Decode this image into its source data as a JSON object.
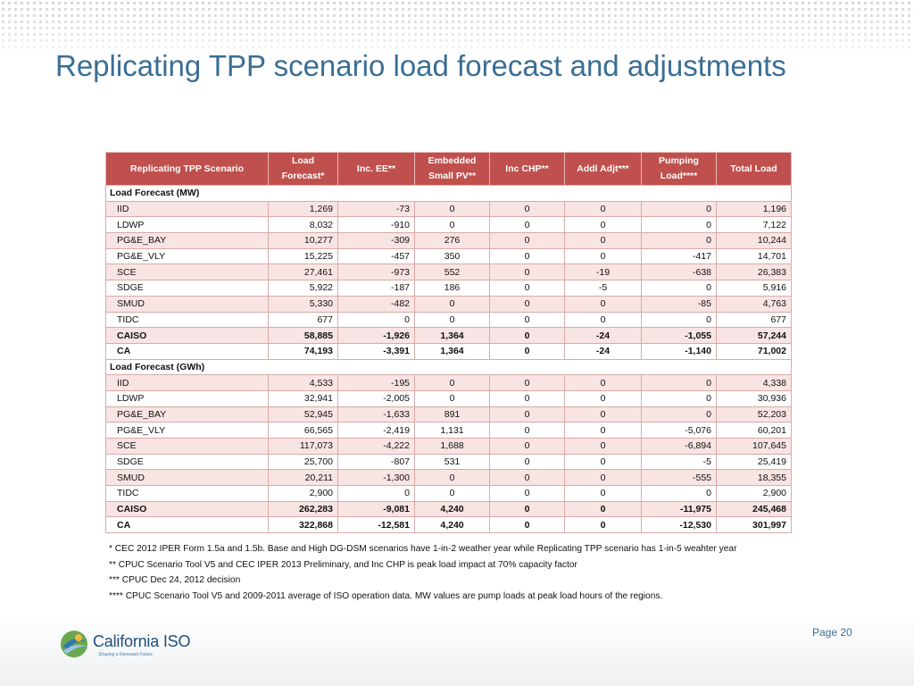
{
  "slide": {
    "title": "Replicating TPP scenario load forecast and adjustments",
    "page_label": "Page 20"
  },
  "logo": {
    "name": "California ISO",
    "tagline": "Shaping a Renewed Future"
  },
  "table": {
    "headers": [
      "Replicating TPP Scenario",
      "Load Forecast*",
      "Inc. EE**",
      "Embedded Small PV**",
      "Inc CHP**",
      "Addl Adjt***",
      "Pumping Load****",
      "Total Load"
    ],
    "sections": [
      {
        "label": "Load Forecast (MW)",
        "rows": [
          {
            "name": "IID",
            "values": [
              "1,269",
              "-73",
              "0",
              "0",
              "0",
              "0",
              "1,196"
            ]
          },
          {
            "name": "LDWP",
            "values": [
              "8,032",
              "-910",
              "0",
              "0",
              "0",
              "0",
              "7,122"
            ]
          },
          {
            "name": "PG&E_BAY",
            "values": [
              "10,277",
              "-309",
              "276",
              "0",
              "0",
              "0",
              "10,244"
            ]
          },
          {
            "name": "PG&E_VLY",
            "values": [
              "15,225",
              "-457",
              "350",
              "0",
              "0",
              "-417",
              "14,701"
            ]
          },
          {
            "name": "SCE",
            "values": [
              "27,461",
              "-973",
              "552",
              "0",
              "-19",
              "-638",
              "26,383"
            ]
          },
          {
            "name": "SDGE",
            "values": [
              "5,922",
              "-187",
              "186",
              "0",
              "-5",
              "0",
              "5,916"
            ]
          },
          {
            "name": "SMUD",
            "values": [
              "5,330",
              "-482",
              "0",
              "0",
              "0",
              "-85",
              "4,763"
            ]
          },
          {
            "name": "TIDC",
            "values": [
              "677",
              "0",
              "0",
              "0",
              "0",
              "0",
              "677"
            ]
          },
          {
            "name": "CAISO",
            "values": [
              "58,885",
              "-1,926",
              "1,364",
              "0",
              "-24",
              "-1,055",
              "57,244"
            ],
            "total": true
          },
          {
            "name": "CA",
            "values": [
              "74,193",
              "-3,391",
              "1,364",
              "0",
              "-24",
              "-1,140",
              "71,002"
            ],
            "total": true
          }
        ]
      },
      {
        "label": "Load Forecast (GWh)",
        "rows": [
          {
            "name": "IID",
            "values": [
              "4,533",
              "-195",
              "0",
              "0",
              "0",
              "0",
              "4,338"
            ]
          },
          {
            "name": "LDWP",
            "values": [
              "32,941",
              "-2,005",
              "0",
              "0",
              "0",
              "0",
              "30,936"
            ]
          },
          {
            "name": "PG&E_BAY",
            "values": [
              "52,945",
              "-1,633",
              "891",
              "0",
              "0",
              "0",
              "52,203"
            ]
          },
          {
            "name": "PG&E_VLY",
            "values": [
              "66,565",
              "-2,419",
              "1,131",
              "0",
              "0",
              "-5,076",
              "60,201"
            ]
          },
          {
            "name": "SCE",
            "values": [
              "117,073",
              "-4,222",
              "1,688",
              "0",
              "0",
              "-6,894",
              "107,645"
            ]
          },
          {
            "name": "SDGE",
            "values": [
              "25,700",
              "-807",
              "531",
              "0",
              "0",
              "-5",
              "25,419"
            ]
          },
          {
            "name": "SMUD",
            "values": [
              "20,211",
              "-1,300",
              "0",
              "0",
              "0",
              "-555",
              "18,355"
            ]
          },
          {
            "name": "TIDC",
            "values": [
              "2,900",
              "0",
              "0",
              "0",
              "0",
              "0",
              "2,900"
            ]
          },
          {
            "name": "CAISO",
            "values": [
              "262,283",
              "-9,081",
              "4,240",
              "0",
              "0",
              "-11,975",
              "245,468"
            ],
            "total": true
          },
          {
            "name": "CA",
            "values": [
              "322,868",
              "-12,581",
              "4,240",
              "0",
              "0",
              "-12,530",
              "301,997"
            ],
            "total": true
          }
        ]
      }
    ]
  },
  "footnotes": [
    "* CEC 2012 IPER Form 1.5a and 1.5b. Base and High DG-DSM scenarios have 1-in-2 weather year while Replicating TPP scenario has 1-in-5 weahter year",
    "** CPUC Scenario Tool V5 and CEC IPER 2013 Preliminary, and Inc CHP is peak load impact at 70% capacity factor",
    "*** CPUC Dec 24, 2012 decision",
    "**** CPUC Scenario Tool V5 and 2009-2011 average of ISO operation data. MW values are pump loads at peak load hours of the regions."
  ],
  "colors": {
    "title": "#3a6e95",
    "header_bg": "#c0504d",
    "alt_row": "#f8e4e3"
  }
}
